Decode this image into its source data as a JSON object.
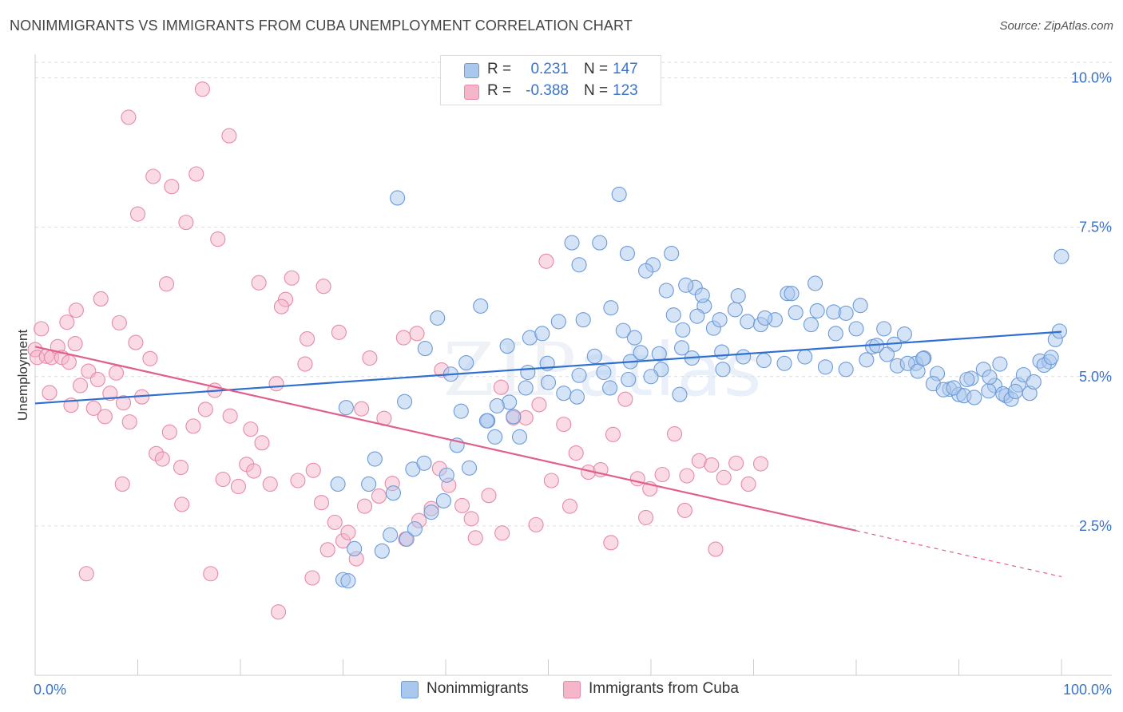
{
  "header": {
    "title": "NONIMMIGRANTS VS IMMIGRANTS FROM CUBA UNEMPLOYMENT CORRELATION CHART",
    "source": "Source: ZipAtlas.com"
  },
  "watermark": {
    "zip": "ZIP",
    "atlas": "atlas"
  },
  "legend": {
    "rows": [
      {
        "r_label": "R =",
        "r_value": "0.231",
        "n_label": "N =",
        "n_value": "147",
        "color": "#aac7ee"
      },
      {
        "r_label": "R =",
        "r_value": "-0.388",
        "n_label": "N =",
        "n_value": "123",
        "color": "#f5b6c9"
      }
    ]
  },
  "bottom_legend": {
    "items": [
      {
        "label": "Nonimmigrants",
        "color": "#aac7ee"
      },
      {
        "label": "Immigrants from Cuba",
        "color": "#f5b6c9"
      }
    ]
  },
  "colors": {
    "blue_fill": "#aac7ee",
    "blue_stroke": "#6d9bd8",
    "blue_line": "#2f6fcf",
    "pink_fill": "#f5b6c9",
    "pink_stroke": "#e68aa8",
    "pink_line": "#e0608c",
    "tick_text": "#3b73c7",
    "grid": "#dddddd"
  },
  "chart_data": {
    "type": "scatter",
    "title": "NONIMMIGRANTS VS IMMIGRANTS FROM CUBA UNEMPLOYMENT CORRELATION CHART",
    "xlabel": "",
    "ylabel": "Unemployment",
    "xlim": [
      0,
      100
    ],
    "ylim": [
      0,
      10.5
    ],
    "x_tick_labels": [
      "0.0%",
      "100.0%"
    ],
    "y_ticks": [
      2.5,
      5.0,
      7.5,
      10.0
    ],
    "y_tick_labels": [
      "2.5%",
      "5.0%",
      "7.5%",
      "10.0%"
    ],
    "grid": true,
    "legend_position": "top-center",
    "series": [
      {
        "name": "Nonimmigrants",
        "color": "#aac7ee",
        "trend": {
          "x": [
            0,
            100
          ],
          "y": [
            4.55,
            5.75
          ],
          "dashed_from": null
        },
        "points": [
          [
            35.3,
            7.99
          ],
          [
            56.9,
            8.05
          ],
          [
            43.4,
            6.18
          ],
          [
            39.2,
            5.98
          ],
          [
            30.3,
            4.48
          ],
          [
            32.5,
            3.2
          ],
          [
            34.9,
            3.05
          ],
          [
            36.8,
            3.45
          ],
          [
            38.6,
            2.73
          ],
          [
            40.1,
            3.35
          ],
          [
            41.1,
            3.85
          ],
          [
            42.3,
            3.47
          ],
          [
            37.9,
            3.55
          ],
          [
            39.8,
            2.92
          ],
          [
            33.1,
            3.62
          ],
          [
            34.6,
            2.35
          ],
          [
            36.2,
            2.28
          ],
          [
            31.1,
            2.12
          ],
          [
            30.0,
            1.6
          ],
          [
            29.5,
            3.2
          ],
          [
            47.2,
            3.99
          ],
          [
            46.2,
            4.57
          ],
          [
            44.1,
            4.26
          ],
          [
            46.6,
            4.33
          ],
          [
            48.2,
            5.65
          ],
          [
            49.4,
            5.72
          ],
          [
            51.0,
            5.92
          ],
          [
            53.4,
            5.95
          ],
          [
            56.1,
            6.15
          ],
          [
            57.3,
            5.77
          ],
          [
            58.4,
            5.65
          ],
          [
            60.8,
            5.38
          ],
          [
            62.2,
            6.03
          ],
          [
            63.1,
            5.78
          ],
          [
            64.3,
            6.49
          ],
          [
            65.2,
            6.18
          ],
          [
            66.1,
            5.81
          ],
          [
            66.9,
            5.41
          ],
          [
            68.5,
            6.35
          ],
          [
            69.4,
            5.92
          ],
          [
            70.7,
            5.87
          ],
          [
            72.1,
            5.95
          ],
          [
            73.3,
            6.39
          ],
          [
            74.1,
            6.07
          ],
          [
            75.6,
            5.87
          ],
          [
            76.2,
            6.1
          ],
          [
            77.8,
            6.08
          ],
          [
            79.0,
            6.06
          ],
          [
            80.4,
            6.19
          ],
          [
            81.6,
            5.5
          ],
          [
            82.7,
            5.8
          ],
          [
            83.7,
            5.54
          ],
          [
            84.7,
            5.71
          ],
          [
            85.8,
            5.22
          ],
          [
            86.6,
            5.31
          ],
          [
            87.9,
            5.05
          ],
          [
            89.1,
            4.79
          ],
          [
            90.0,
            4.7
          ],
          [
            91.2,
            4.97
          ],
          [
            92.4,
            5.12
          ],
          [
            93.5,
            4.85
          ],
          [
            94.6,
            4.68
          ],
          [
            95.8,
            4.86
          ],
          [
            96.9,
            4.72
          ],
          [
            97.9,
            5.26
          ],
          [
            98.8,
            5.25
          ],
          [
            99.4,
            5.62
          ],
          [
            99.8,
            5.76
          ],
          [
            100.0,
            7.01
          ],
          [
            94.0,
            5.21
          ],
          [
            55.0,
            7.24
          ],
          [
            52.3,
            7.24
          ],
          [
            53.0,
            6.87
          ],
          [
            57.7,
            7.06
          ],
          [
            60.2,
            6.87
          ],
          [
            62.0,
            7.06
          ],
          [
            63.4,
            6.53
          ],
          [
            65.0,
            6.36
          ],
          [
            66.7,
            5.95
          ],
          [
            68.2,
            6.12
          ],
          [
            59.5,
            6.77
          ],
          [
            61.5,
            6.44
          ],
          [
            64.5,
            6.01
          ],
          [
            71.1,
            5.98
          ],
          [
            73.7,
            6.39
          ],
          [
            76.0,
            6.56
          ],
          [
            78.0,
            5.72
          ],
          [
            80.0,
            5.8
          ],
          [
            82.0,
            5.52
          ],
          [
            84.0,
            5.18
          ],
          [
            44.0,
            4.26
          ],
          [
            45.0,
            4.51
          ],
          [
            48.0,
            5.07
          ],
          [
            50.0,
            4.9
          ],
          [
            51.5,
            4.72
          ],
          [
            53.0,
            5.02
          ],
          [
            54.5,
            5.34
          ],
          [
            56.0,
            4.81
          ],
          [
            58.0,
            5.25
          ],
          [
            59.0,
            5.4
          ],
          [
            61.0,
            5.12
          ],
          [
            63.0,
            5.48
          ],
          [
            64.0,
            5.31
          ],
          [
            67.0,
            5.12
          ],
          [
            69.0,
            5.33
          ],
          [
            71.0,
            5.27
          ],
          [
            73.0,
            5.22
          ],
          [
            75.0,
            5.33
          ],
          [
            77.0,
            5.16
          ],
          [
            79.0,
            5.12
          ],
          [
            81.0,
            5.28
          ],
          [
            83.0,
            5.37
          ],
          [
            85.0,
            5.22
          ],
          [
            86.0,
            5.09
          ],
          [
            87.5,
            4.88
          ],
          [
            88.5,
            4.78
          ],
          [
            89.5,
            4.81
          ],
          [
            90.5,
            4.68
          ],
          [
            91.5,
            4.65
          ],
          [
            92.9,
            4.76
          ],
          [
            94.3,
            4.71
          ],
          [
            95.1,
            4.62
          ],
          [
            96.3,
            5.03
          ],
          [
            97.3,
            4.91
          ],
          [
            98.3,
            5.19
          ],
          [
            99.0,
            5.32
          ],
          [
            86.5,
            5.3
          ],
          [
            90.8,
            4.95
          ],
          [
            93.0,
            4.99
          ],
          [
            95.5,
            4.75
          ],
          [
            40.5,
            5.04
          ],
          [
            42.0,
            5.23
          ],
          [
            46.0,
            5.51
          ],
          [
            47.8,
            4.81
          ],
          [
            49.9,
            5.22
          ],
          [
            52.8,
            4.66
          ],
          [
            55.4,
            5.07
          ],
          [
            57.8,
            4.95
          ],
          [
            60.0,
            5.0
          ],
          [
            62.8,
            4.7
          ],
          [
            38.0,
            5.47
          ],
          [
            36.0,
            4.58
          ],
          [
            41.5,
            4.42
          ],
          [
            44.8,
            3.99
          ],
          [
            30.5,
            1.58
          ],
          [
            33.8,
            2.08
          ],
          [
            37.0,
            2.45
          ]
        ]
      },
      {
        "name": "Immigrants from Cuba",
        "color": "#f5b6c9",
        "trend": {
          "x": [
            0,
            100
          ],
          "y": [
            5.5,
            1.65
          ],
          "dashed_from": 80
        },
        "points": [
          [
            0.0,
            5.45
          ],
          [
            0.2,
            5.32
          ],
          [
            0.6,
            5.8
          ],
          [
            1.1,
            5.34
          ],
          [
            1.6,
            5.32
          ],
          [
            2.2,
            5.5
          ],
          [
            2.6,
            5.32
          ],
          [
            3.3,
            5.24
          ],
          [
            3.9,
            5.55
          ],
          [
            4.4,
            4.85
          ],
          [
            5.2,
            5.09
          ],
          [
            5.7,
            4.47
          ],
          [
            6.1,
            4.95
          ],
          [
            6.8,
            4.33
          ],
          [
            7.3,
            4.72
          ],
          [
            7.9,
            5.06
          ],
          [
            8.6,
            4.56
          ],
          [
            9.2,
            4.24
          ],
          [
            9.8,
            5.57
          ],
          [
            10.4,
            4.66
          ],
          [
            11.2,
            5.3
          ],
          [
            11.8,
            3.71
          ],
          [
            12.4,
            3.62
          ],
          [
            13.1,
            4.07
          ],
          [
            14.2,
            3.48
          ],
          [
            15.4,
            4.17
          ],
          [
            16.6,
            4.45
          ],
          [
            17.5,
            4.77
          ],
          [
            18.3,
            3.28
          ],
          [
            19.0,
            4.34
          ],
          [
            19.8,
            3.16
          ],
          [
            20.6,
            3.53
          ],
          [
            21.3,
            3.42
          ],
          [
            22.1,
            3.89
          ],
          [
            22.9,
            3.2
          ],
          [
            23.5,
            4.88
          ],
          [
            24.4,
            6.29
          ],
          [
            25.0,
            6.65
          ],
          [
            25.6,
            3.26
          ],
          [
            26.3,
            5.21
          ],
          [
            27.1,
            3.43
          ],
          [
            27.9,
            2.89
          ],
          [
            28.5,
            2.1
          ],
          [
            29.2,
            2.56
          ],
          [
            30.0,
            2.25
          ],
          [
            30.5,
            2.39
          ],
          [
            31.3,
            1.95
          ],
          [
            32.1,
            2.83
          ],
          [
            33.5,
            3.0
          ],
          [
            34.8,
            3.21
          ],
          [
            36.1,
            2.28
          ],
          [
            37.4,
            2.59
          ],
          [
            38.6,
            2.79
          ],
          [
            39.4,
            3.46
          ],
          [
            40.3,
            3.18
          ],
          [
            41.6,
            2.84
          ],
          [
            42.9,
            2.3
          ],
          [
            44.2,
            3.01
          ],
          [
            45.4,
            4.82
          ],
          [
            46.6,
            4.31
          ],
          [
            47.8,
            4.31
          ],
          [
            49.1,
            4.53
          ],
          [
            50.3,
            3.26
          ],
          [
            51.5,
            4.2
          ],
          [
            52.7,
            3.72
          ],
          [
            53.9,
            3.4
          ],
          [
            55.1,
            3.44
          ],
          [
            56.3,
            4.03
          ],
          [
            57.5,
            4.62
          ],
          [
            58.7,
            3.29
          ],
          [
            59.9,
            3.12
          ],
          [
            61.1,
            3.36
          ],
          [
            62.3,
            4.04
          ],
          [
            63.5,
            3.34
          ],
          [
            64.7,
            3.59
          ],
          [
            65.9,
            3.52
          ],
          [
            67.1,
            3.31
          ],
          [
            68.3,
            3.55
          ],
          [
            69.5,
            3.2
          ],
          [
            70.7,
            3.54
          ],
          [
            11.5,
            8.35
          ],
          [
            13.3,
            8.18
          ],
          [
            16.3,
            9.81
          ],
          [
            15.7,
            8.39
          ],
          [
            18.9,
            9.03
          ],
          [
            9.1,
            9.34
          ],
          [
            14.7,
            7.58
          ],
          [
            17.8,
            7.3
          ],
          [
            10.0,
            7.72
          ],
          [
            12.8,
            6.55
          ],
          [
            6.4,
            6.3
          ],
          [
            8.2,
            5.9
          ],
          [
            4.0,
            6.11
          ],
          [
            3.1,
            5.91
          ],
          [
            1.4,
            4.73
          ],
          [
            21.8,
            6.57
          ],
          [
            24.0,
            6.17
          ],
          [
            28.1,
            6.51
          ],
          [
            32.6,
            5.31
          ],
          [
            35.9,
            5.65
          ],
          [
            37.2,
            5.72
          ],
          [
            39.6,
            5.11
          ],
          [
            29.6,
            5.74
          ],
          [
            34.0,
            4.3
          ],
          [
            42.5,
            2.62
          ],
          [
            45.5,
            2.38
          ],
          [
            48.8,
            2.52
          ],
          [
            52.1,
            2.83
          ],
          [
            56.1,
            2.22
          ],
          [
            59.5,
            2.64
          ],
          [
            63.3,
            2.76
          ],
          [
            66.3,
            2.11
          ],
          [
            27.0,
            1.63
          ],
          [
            23.7,
            1.06
          ],
          [
            14.3,
            2.86
          ],
          [
            8.5,
            3.2
          ],
          [
            5.0,
            1.7
          ],
          [
            17.1,
            1.7
          ],
          [
            3.5,
            4.52
          ],
          [
            21.0,
            4.12
          ],
          [
            31.8,
            4.46
          ],
          [
            26.5,
            5.63
          ],
          [
            49.8,
            6.93
          ]
        ]
      }
    ]
  }
}
